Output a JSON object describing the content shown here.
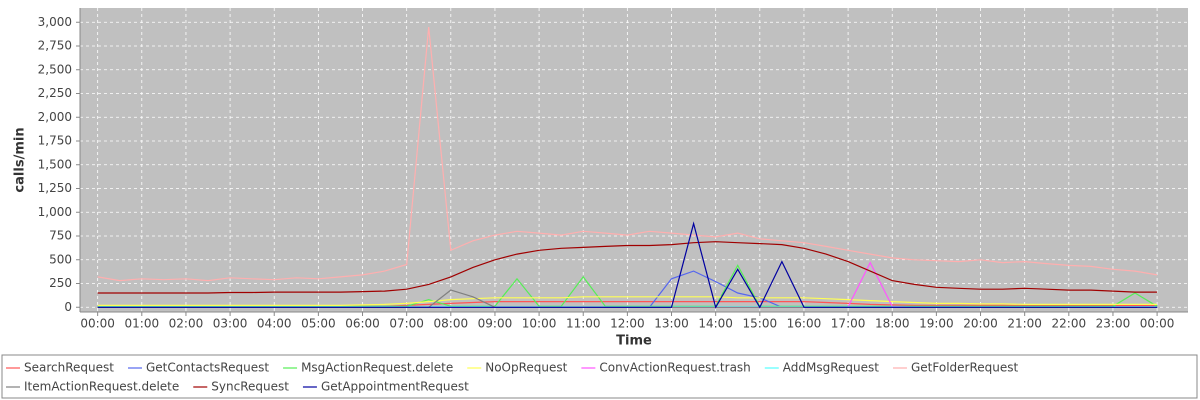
{
  "chart_data": {
    "type": "line",
    "x_label": "Time",
    "y_label": "calls/min",
    "x": [
      0,
      0.5,
      1,
      1.5,
      2,
      2.5,
      3,
      3.5,
      4,
      4.5,
      5,
      5.5,
      6,
      6.5,
      7,
      7.5,
      8,
      8.5,
      9,
      9.5,
      10,
      10.5,
      11,
      11.5,
      12,
      12.5,
      13,
      13.5,
      14,
      14.5,
      15,
      15.5,
      16,
      16.5,
      17,
      17.5,
      18,
      18.5,
      19,
      19.5,
      20,
      20.5,
      21,
      21.5,
      22,
      22.5,
      23,
      23.5,
      24
    ],
    "xlim": [
      -0.4,
      24.7
    ],
    "xticks": [
      {
        "value": 0,
        "label": "00:00"
      },
      {
        "value": 1,
        "label": "01:00"
      },
      {
        "value": 2,
        "label": "02:00"
      },
      {
        "value": 3,
        "label": "03:00"
      },
      {
        "value": 4,
        "label": "04:00"
      },
      {
        "value": 5,
        "label": "05:00"
      },
      {
        "value": 6,
        "label": "06:00"
      },
      {
        "value": 7,
        "label": "07:00"
      },
      {
        "value": 8,
        "label": "08:00"
      },
      {
        "value": 9,
        "label": "09:00"
      },
      {
        "value": 10,
        "label": "10:00"
      },
      {
        "value": 11,
        "label": "11:00"
      },
      {
        "value": 12,
        "label": "12:00"
      },
      {
        "value": 13,
        "label": "13:00"
      },
      {
        "value": 14,
        "label": "14:00"
      },
      {
        "value": 15,
        "label": "15:00"
      },
      {
        "value": 16,
        "label": "16:00"
      },
      {
        "value": 17,
        "label": "17:00"
      },
      {
        "value": 18,
        "label": "18:00"
      },
      {
        "value": 19,
        "label": "19:00"
      },
      {
        "value": 20,
        "label": "20:00"
      },
      {
        "value": 21,
        "label": "21:00"
      },
      {
        "value": 22,
        "label": "22:00"
      },
      {
        "value": 23,
        "label": "23:00"
      },
      {
        "value": 24,
        "label": "00:00"
      }
    ],
    "ylim": [
      -50,
      3150
    ],
    "yticks": [
      0,
      250,
      500,
      750,
      {
        "value": 1000,
        "label": "1,000"
      },
      {
        "value": 1250,
        "label": "1,250"
      },
      {
        "value": 1500,
        "label": "1,500"
      },
      {
        "value": 1750,
        "label": "1,750"
      },
      {
        "value": 2000,
        "label": "2,000"
      },
      {
        "value": 2250,
        "label": "2,250"
      },
      {
        "value": 2500,
        "label": "2,500"
      },
      {
        "value": 2750,
        "label": "2,750"
      },
      {
        "value": 3000,
        "label": "3,000"
      }
    ],
    "grid": true,
    "legend": "bottom",
    "series": [
      {
        "name": "SearchRequest",
        "color": "#ff5555",
        "values": [
          10,
          10,
          10,
          10,
          10,
          10,
          10,
          10,
          10,
          10,
          10,
          10,
          10,
          10,
          20,
          30,
          40,
          50,
          60,
          60,
          60,
          60,
          60,
          60,
          60,
          60,
          60,
          60,
          60,
          60,
          60,
          60,
          60,
          50,
          40,
          30,
          25,
          20,
          20,
          20,
          20,
          20,
          20,
          20,
          20,
          20,
          20,
          20,
          20
        ]
      },
      {
        "name": "GetContactsRequest",
        "color": "#5566ee",
        "values": [
          0,
          0,
          0,
          0,
          0,
          0,
          0,
          0,
          0,
          0,
          0,
          0,
          0,
          0,
          0,
          0,
          0,
          0,
          0,
          0,
          0,
          0,
          0,
          0,
          0,
          0,
          300,
          380,
          270,
          150,
          100,
          0,
          0,
          0,
          0,
          0,
          0,
          0,
          0,
          0,
          0,
          0,
          0,
          0,
          0,
          0,
          0,
          0,
          0
        ]
      },
      {
        "name": "MsgActionRequest.delete",
        "color": "#55ee55",
        "values": [
          10,
          10,
          10,
          10,
          10,
          10,
          10,
          10,
          10,
          10,
          10,
          10,
          10,
          10,
          10,
          80,
          10,
          10,
          10,
          300,
          10,
          10,
          320,
          10,
          10,
          10,
          10,
          10,
          10,
          440,
          10,
          10,
          10,
          10,
          10,
          10,
          10,
          10,
          10,
          10,
          10,
          10,
          10,
          10,
          10,
          10,
          10,
          150,
          10
        ]
      },
      {
        "name": "NoOpRequest",
        "color": "#ffff55",
        "values": [
          20,
          20,
          20,
          20,
          20,
          20,
          20,
          20,
          20,
          20,
          20,
          20,
          25,
          30,
          40,
          60,
          80,
          90,
          100,
          100,
          100,
          100,
          110,
          110,
          110,
          110,
          110,
          110,
          110,
          100,
          100,
          100,
          100,
          90,
          80,
          70,
          60,
          50,
          40,
          40,
          35,
          35,
          30,
          30,
          30,
          30,
          30,
          30,
          30
        ]
      },
      {
        "name": "ConvActionRequest.trash",
        "color": "#ff55ff",
        "values": [
          0,
          0,
          0,
          0,
          0,
          0,
          0,
          0,
          0,
          0,
          0,
          0,
          0,
          0,
          0,
          0,
          0,
          0,
          0,
          0,
          0,
          0,
          0,
          0,
          0,
          0,
          0,
          0,
          0,
          0,
          0,
          0,
          0,
          0,
          5,
          470,
          10,
          0,
          0,
          0,
          0,
          0,
          0,
          0,
          0,
          0,
          0,
          0,
          0
        ]
      },
      {
        "name": "AddMsgRequest",
        "color": "#55ffff",
        "values": [
          5,
          5,
          5,
          5,
          5,
          5,
          5,
          5,
          5,
          5,
          5,
          5,
          5,
          5,
          5,
          5,
          5,
          5,
          5,
          5,
          5,
          5,
          5,
          5,
          5,
          5,
          5,
          5,
          5,
          5,
          5,
          5,
          5,
          5,
          5,
          5,
          5,
          5,
          5,
          5,
          5,
          5,
          5,
          5,
          5,
          5,
          5,
          5,
          5
        ]
      },
      {
        "name": "GetFolderRequest",
        "color": "#ffafaf",
        "values": [
          320,
          280,
          300,
          290,
          300,
          280,
          310,
          300,
          290,
          310,
          300,
          320,
          340,
          380,
          450,
          2950,
          600,
          700,
          760,
          800,
          780,
          760,
          800,
          780,
          760,
          800,
          780,
          760,
          740,
          780,
          720,
          700,
          680,
          640,
          600,
          560,
          520,
          500,
          490,
          480,
          500,
          470,
          480,
          460,
          440,
          430,
          400,
          380,
          340
        ]
      },
      {
        "name": "ItemActionRequest.delete",
        "color": "#808080",
        "values": [
          0,
          0,
          0,
          0,
          0,
          0,
          0,
          0,
          0,
          0,
          0,
          0,
          0,
          0,
          0,
          0,
          180,
          110,
          0,
          0,
          0,
          0,
          0,
          0,
          0,
          0,
          0,
          0,
          0,
          0,
          0,
          0,
          0,
          0,
          0,
          0,
          0,
          0,
          0,
          0,
          0,
          0,
          0,
          0,
          0,
          0,
          0,
          0,
          0
        ]
      },
      {
        "name": "SyncRequest",
        "color": "#a00000",
        "values": [
          150,
          150,
          150,
          150,
          150,
          150,
          155,
          155,
          160,
          160,
          160,
          160,
          165,
          170,
          190,
          240,
          320,
          420,
          500,
          560,
          600,
          620,
          630,
          640,
          650,
          650,
          660,
          680,
          690,
          680,
          670,
          660,
          620,
          560,
          480,
          380,
          280,
          240,
          210,
          200,
          190,
          190,
          200,
          190,
          180,
          180,
          170,
          160,
          160
        ]
      },
      {
        "name": "GetAppointmentRequest",
        "color": "#0000a0",
        "values": [
          0,
          0,
          0,
          0,
          0,
          0,
          0,
          0,
          0,
          0,
          0,
          0,
          0,
          0,
          0,
          0,
          0,
          0,
          0,
          0,
          0,
          0,
          0,
          0,
          0,
          0,
          0,
          880,
          0,
          400,
          0,
          480,
          0,
          0,
          0,
          0,
          0,
          0,
          0,
          0,
          0,
          0,
          0,
          0,
          0,
          0,
          0,
          0,
          0
        ]
      }
    ]
  }
}
